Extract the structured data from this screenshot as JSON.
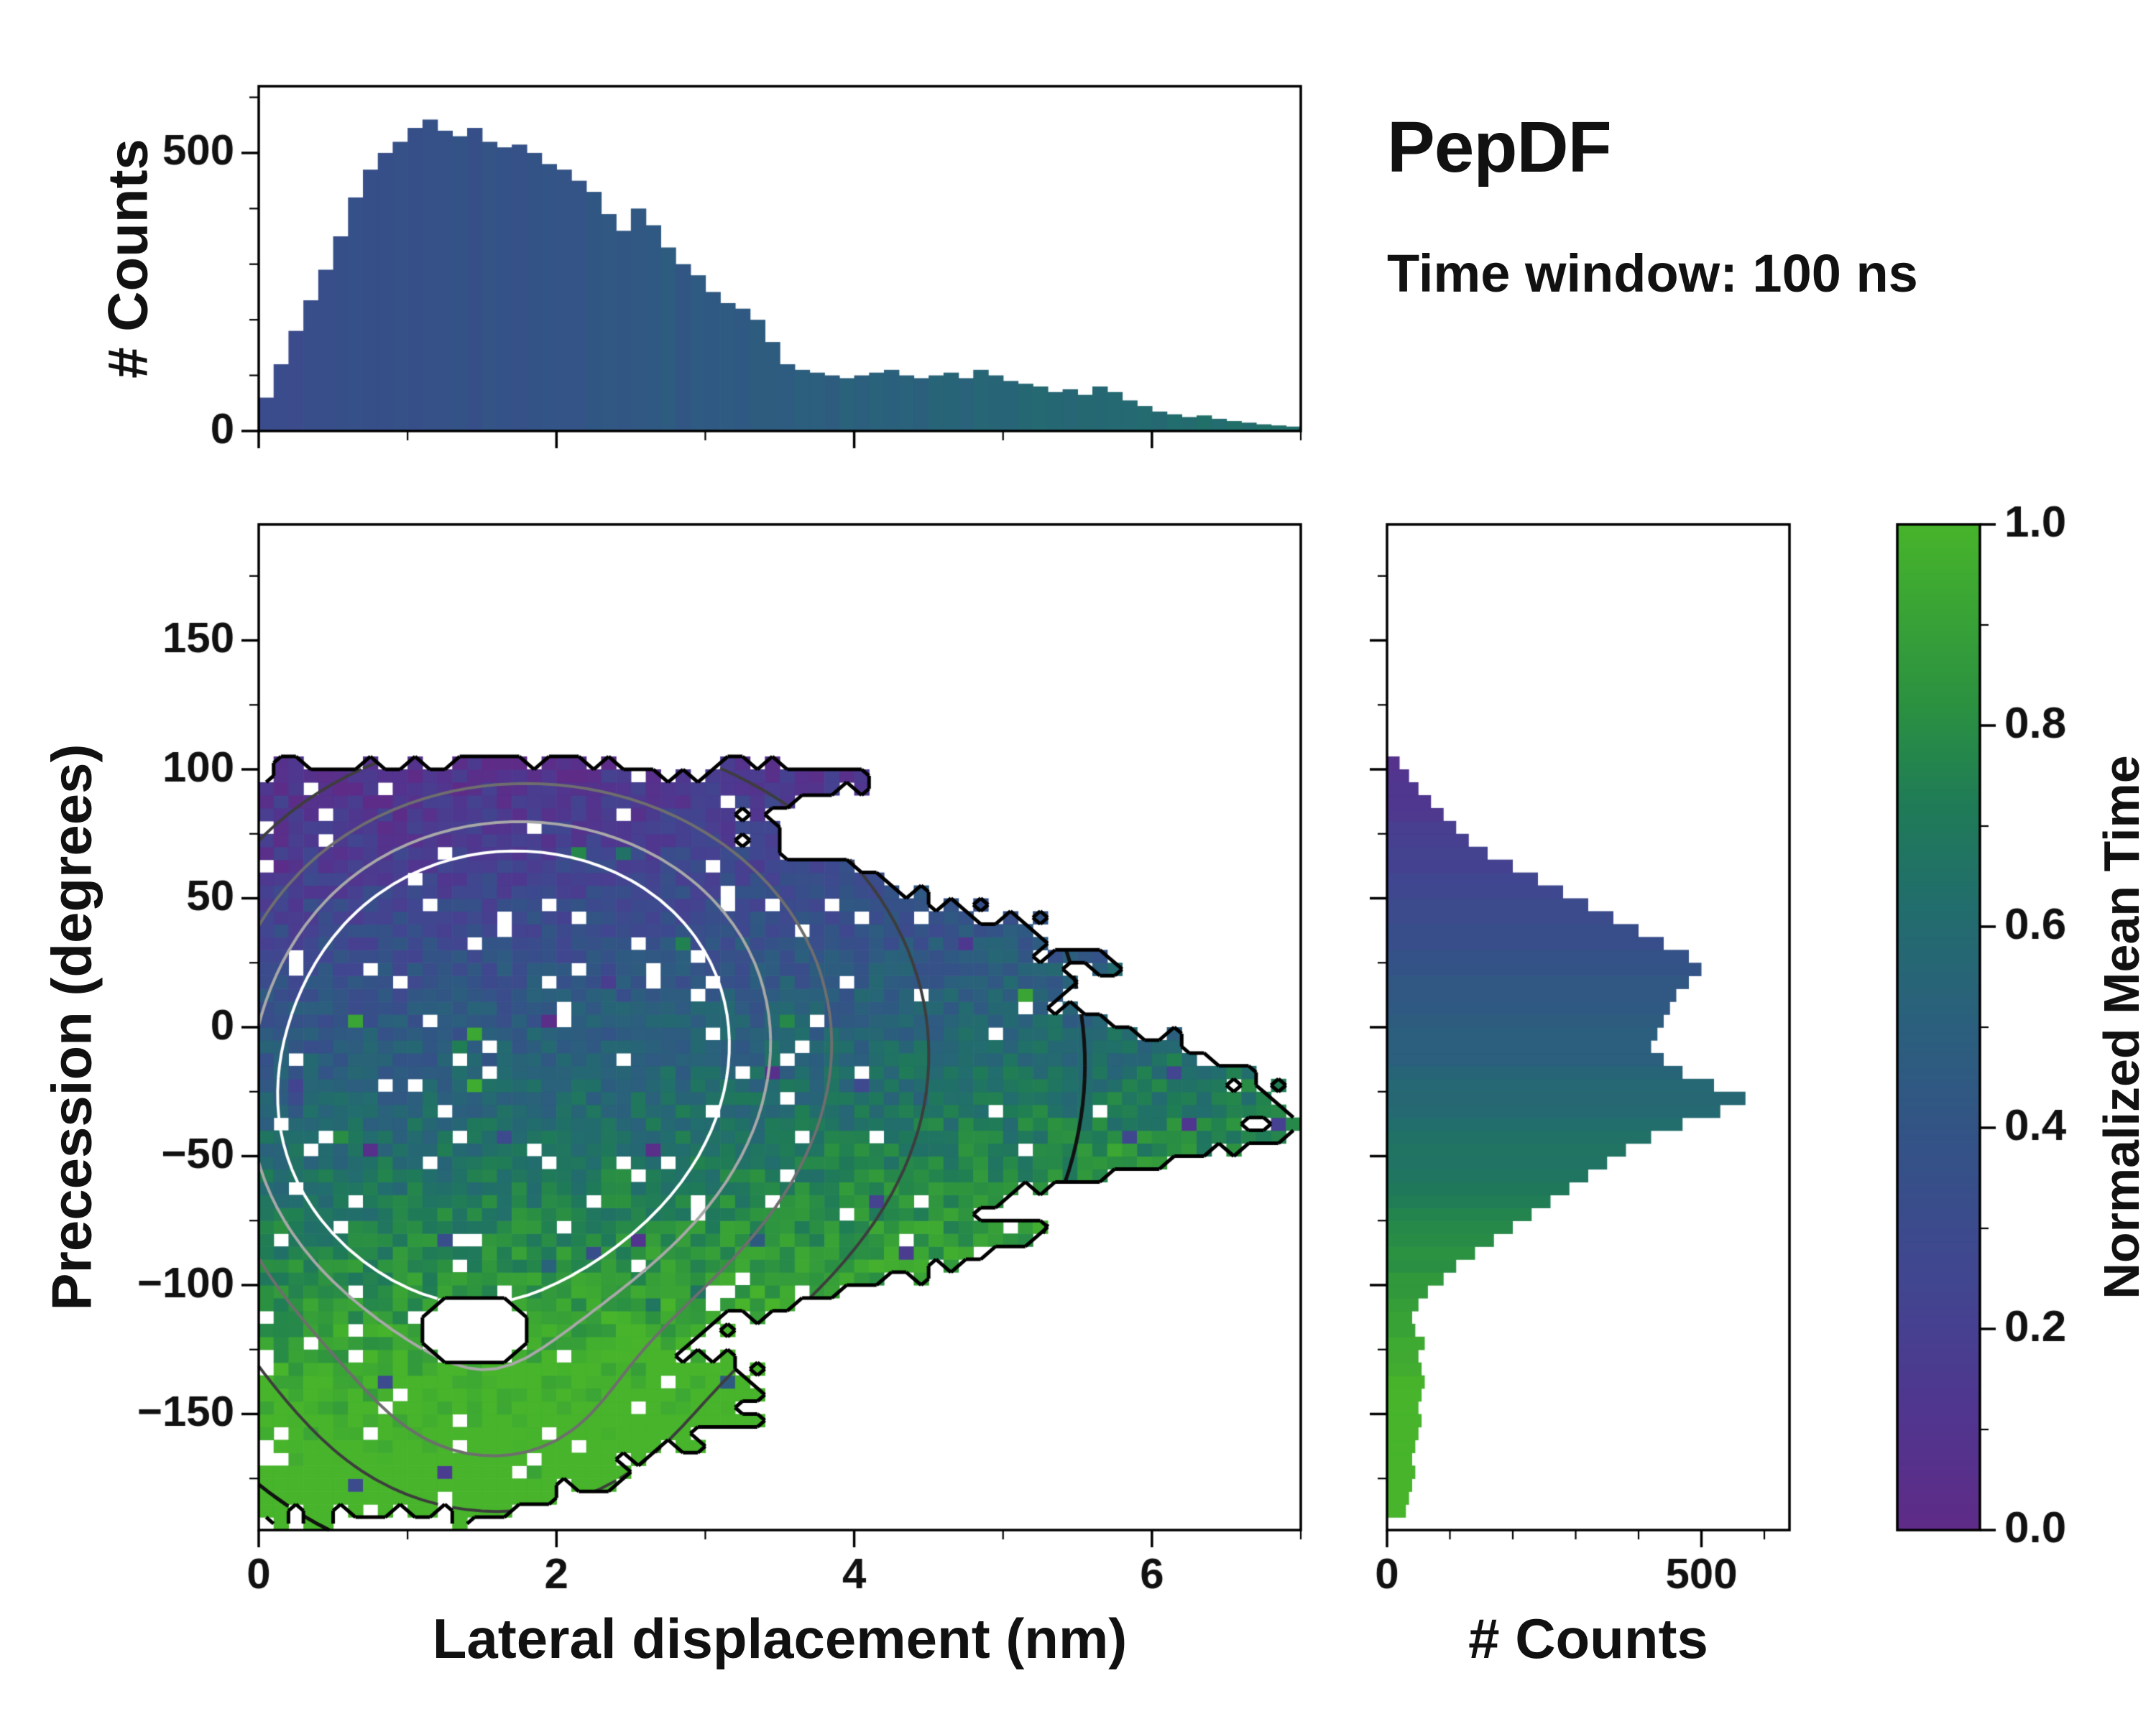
{
  "title": "PepDF",
  "subtitle": "Time window: 100 ns",
  "labels": {
    "main_x": "Lateral displacement (nm)",
    "main_y": "Precession (degrees)",
    "top_y": "# Counts",
    "right_x": "# Counts"
  },
  "colormap": {
    "label": "Normalized Mean Time",
    "ticks": [
      "0.0",
      "0.2",
      "0.4",
      "0.6",
      "0.8",
      "1.0"
    ],
    "stops": [
      [
        0.0,
        "#5e2b87"
      ],
      [
        0.12,
        "#50368f"
      ],
      [
        0.25,
        "#414690"
      ],
      [
        0.38,
        "#345287"
      ],
      [
        0.5,
        "#2b5f7d"
      ],
      [
        0.62,
        "#226d6d"
      ],
      [
        0.72,
        "#1f7b57"
      ],
      [
        0.82,
        "#2b9141"
      ],
      [
        1.0,
        "#47b42b"
      ]
    ]
  },
  "chart_data": [
    {
      "name": "lateral-displacement-histogram",
      "type": "bar",
      "orientation": "vertical",
      "ylabel": "# Counts",
      "xlim": [
        0,
        7.0
      ],
      "ylim": [
        0,
        620
      ],
      "yticks": [
        0,
        500
      ],
      "ytick_minor_step": 100,
      "xticks": [
        0,
        2,
        4,
        6
      ],
      "xtick_minor_step": 1,
      "xtick_labels_visible": false,
      "x_start": 0,
      "bin_width": 0.1,
      "values": [
        60,
        120,
        180,
        235,
        290,
        350,
        420,
        470,
        500,
        520,
        545,
        560,
        540,
        530,
        545,
        520,
        510,
        515,
        500,
        480,
        470,
        450,
        430,
        390,
        360,
        400,
        370,
        330,
        300,
        280,
        250,
        230,
        220,
        200,
        160,
        120,
        110,
        105,
        100,
        95,
        100,
        105,
        110,
        100,
        95,
        100,
        105,
        95,
        110,
        100,
        90,
        85,
        80,
        70,
        75,
        65,
        80,
        70,
        55,
        45,
        35,
        30,
        25,
        28,
        22,
        18,
        15,
        12,
        10,
        8
      ],
      "color_model": {
        "base": 0.3,
        "slope": 0.05,
        "jitter": 0.05
      }
    },
    {
      "name": "precession-vs-lateral-heatmap",
      "type": "heatmap",
      "xlabel": "Lateral displacement (nm)",
      "ylabel": "Precession (degrees)",
      "xlim": [
        0,
        7.0
      ],
      "ylim": [
        -195,
        195
      ],
      "xticks": [
        0,
        2,
        4,
        6
      ],
      "xtick_minor_step": 1,
      "yticks": [
        -150,
        -100,
        -50,
        0,
        50,
        100,
        150
      ],
      "ytick_minor_step": 25,
      "cell": {
        "dx": 0.1,
        "dy": 5
      },
      "seed": 11,
      "value_model": {
        "base": 0.47,
        "y_coef": -0.003846,
        "x_coef": 0.03,
        "x_ref": 2,
        "noise": 0.11,
        "outlier_prob": 0.025
      },
      "region": {
        "y_min": -191,
        "y_max": 102,
        "edge_noise": 0.28,
        "dropout_prob": 0.05,
        "max_x_points": [
          [
            -192,
            1.7
          ],
          [
            -180,
            2.2
          ],
          [
            -170,
            2.4
          ],
          [
            -160,
            2.9
          ],
          [
            -150,
            3.3
          ],
          [
            -140,
            3.4
          ],
          [
            -130,
            3.1
          ],
          [
            -120,
            3.0
          ],
          [
            -110,
            3.3
          ],
          [
            -100,
            4.2
          ],
          [
            -90,
            4.8
          ],
          [
            -80,
            5.5
          ],
          [
            -70,
            4.7
          ],
          [
            -60,
            5.6
          ],
          [
            -50,
            6.2
          ],
          [
            -40,
            6.9
          ],
          [
            -30,
            6.9
          ],
          [
            -20,
            6.7
          ],
          [
            -10,
            6.4
          ],
          [
            0,
            5.8
          ],
          [
            10,
            5.3
          ],
          [
            20,
            5.6
          ],
          [
            30,
            5.4
          ],
          [
            40,
            5.2
          ],
          [
            55,
            4.3
          ],
          [
            70,
            3.3
          ],
          [
            85,
            3.5
          ],
          [
            95,
            4.1
          ],
          [
            102,
            3.6
          ]
        ],
        "holes": [
          {
            "x": 1.45,
            "y": -118,
            "rx": 0.38,
            "ry": 14
          }
        ]
      },
      "contours": {
        "levels": [
          0.14,
          0.32,
          0.52,
          0.72,
          0.9
        ],
        "colors": [
          "#111111",
          "#3d3d3d",
          "#6e6e6e",
          "#a8a8a8",
          "#ffffff"
        ],
        "lobes": [
          {
            "cx": 1.6,
            "cy": 15,
            "sx": 1.05,
            "sy": 48,
            "a": 1.0
          },
          {
            "cx": 1.35,
            "cy": -40,
            "sx": 0.95,
            "sy": 38,
            "a": 0.8
          },
          {
            "cx": 2.4,
            "cy": -15,
            "sx": 1.9,
            "sy": 95,
            "a": 0.55
          },
          {
            "cx": 1.2,
            "cy": -105,
            "sx": 1.1,
            "sy": 45,
            "a": 0.35
          },
          {
            "cx": 1.6,
            "cy": -160,
            "sx": 0.8,
            "sy": 30,
            "a": 0.25
          }
        ]
      }
    },
    {
      "name": "precession-histogram",
      "type": "bar",
      "orientation": "horizontal",
      "xlabel": "# Counts",
      "xlim": [
        0,
        640
      ],
      "xticks": [
        0,
        500
      ],
      "xtick_minor_step": 100,
      "ylim": [
        -195,
        195
      ],
      "yticks": [
        -150,
        -100,
        -50,
        0,
        50,
        100,
        150
      ],
      "ytick_minor_step": 25,
      "ytick_labels_visible": false,
      "y_start": -190,
      "bin_width": 5,
      "values": [
        30,
        35,
        40,
        45,
        40,
        45,
        50,
        55,
        50,
        55,
        60,
        55,
        50,
        60,
        45,
        40,
        50,
        65,
        90,
        110,
        140,
        170,
        200,
        230,
        260,
        290,
        320,
        350,
        380,
        420,
        470,
        530,
        570,
        520,
        470,
        440,
        420,
        430,
        440,
        450,
        460,
        480,
        500,
        480,
        440,
        400,
        360,
        320,
        280,
        240,
        200,
        160,
        130,
        110,
        90,
        70,
        50,
        35,
        20
      ],
      "color_model": {
        "base": 0.47,
        "slope": -0.003846,
        "jitter": 0.04
      }
    }
  ]
}
